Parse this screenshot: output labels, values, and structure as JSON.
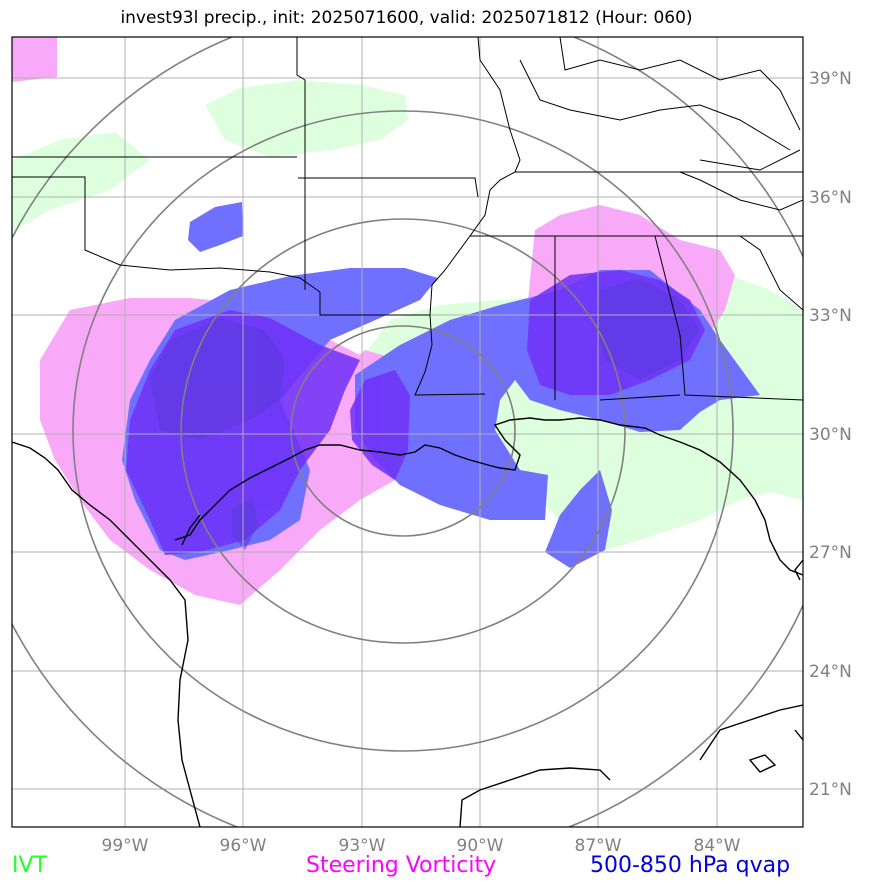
{
  "title": "invest93l precip., init: 2025071600, valid: 2025071812 (Hour: 060)",
  "colors": {
    "ivt": "#22ff22",
    "ivt_fill": "#ddffdd",
    "vorticity": "#ff00ff",
    "vorticity_fill": "#f8aaf8",
    "qvap": "#0000dd",
    "qvap_fill": "#7070ff",
    "qvap_strong": "#7030f8",
    "gridline": "#b0b0b0",
    "range_ring": "#808080"
  },
  "axes": {
    "lon_ticks": [
      "99°W",
      "96°W",
      "93°W",
      "90°W",
      "87°W",
      "84°W"
    ],
    "lat_ticks": [
      "39°N",
      "36°N",
      "33°N",
      "30°N",
      "27°N",
      "24°N",
      "21°N"
    ]
  },
  "legend": [
    {
      "label": "IVT",
      "color": "#22ff22"
    },
    {
      "label": "Steering Vorticity",
      "color": "#ff00ff"
    },
    {
      "label": "500-850 hPa qvap",
      "color": "#0000dd"
    }
  ]
}
